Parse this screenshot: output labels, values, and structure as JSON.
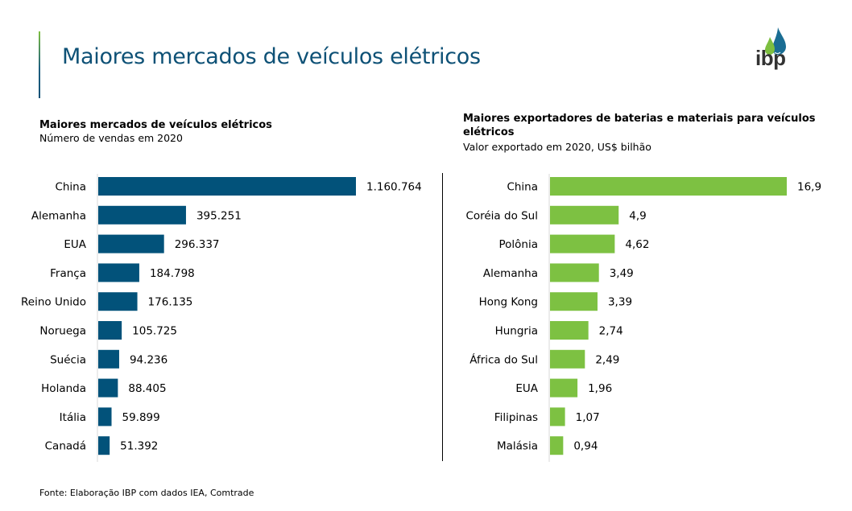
{
  "header": {
    "title": "Maiores mercados de veículos elétricos",
    "logo_text": "ibp",
    "logo_icon": "ibp-drop-logo-icon"
  },
  "colors": {
    "title": "#0e5176",
    "bar_left": "#02527a",
    "bar_right": "#7dc142",
    "accent_green": "#7dbf3f"
  },
  "chart_data": [
    {
      "type": "bar",
      "orientation": "horizontal",
      "title": "Maiores mercados de veículos elétricos",
      "subtitle": "Número de vendas em 2020",
      "xlabel": "",
      "ylabel": "",
      "categories": [
        "China",
        "Alemanha",
        "EUA",
        "França",
        "Reino Unido",
        "Noruega",
        "Suécia",
        "Holanda",
        "Itália",
        "Canadá"
      ],
      "values": [
        1160764,
        395251,
        296337,
        184798,
        176135,
        105725,
        94236,
        88405,
        59899,
        51392
      ],
      "labels": [
        "1.160.764",
        "395.251",
        "296.337",
        "184.798",
        "176.135",
        "105.725",
        "94.236",
        "88.405",
        "59.899",
        "51.392"
      ],
      "xlim": [
        0,
        1160764
      ],
      "grid": false,
      "color": "#02527a"
    },
    {
      "type": "bar",
      "orientation": "horizontal",
      "title": "Maiores exportadores de baterias e materiais para veículos elétricos",
      "subtitle": "Valor exportado em 2020, US$ bilhão",
      "xlabel": "",
      "ylabel": "",
      "categories": [
        "China",
        "Coréia do Sul",
        "Polônia",
        "Alemanha",
        "Hong Kong",
        "Hungria",
        "África do Sul",
        "EUA",
        "Filipinas",
        "Malásia"
      ],
      "values": [
        16.9,
        4.9,
        4.62,
        3.49,
        3.39,
        2.74,
        2.49,
        1.96,
        1.07,
        0.94
      ],
      "labels": [
        "16,9",
        "4,9",
        "4,62",
        "3,49",
        "3,39",
        "2,74",
        "2,49",
        "1,96",
        "1,07",
        "0,94"
      ],
      "xlim": [
        0,
        16.9
      ],
      "grid": false,
      "color": "#7dc142"
    }
  ],
  "footer": {
    "source": "Fonte: Elaboração IBP com dados IEA,  Comtrade"
  }
}
